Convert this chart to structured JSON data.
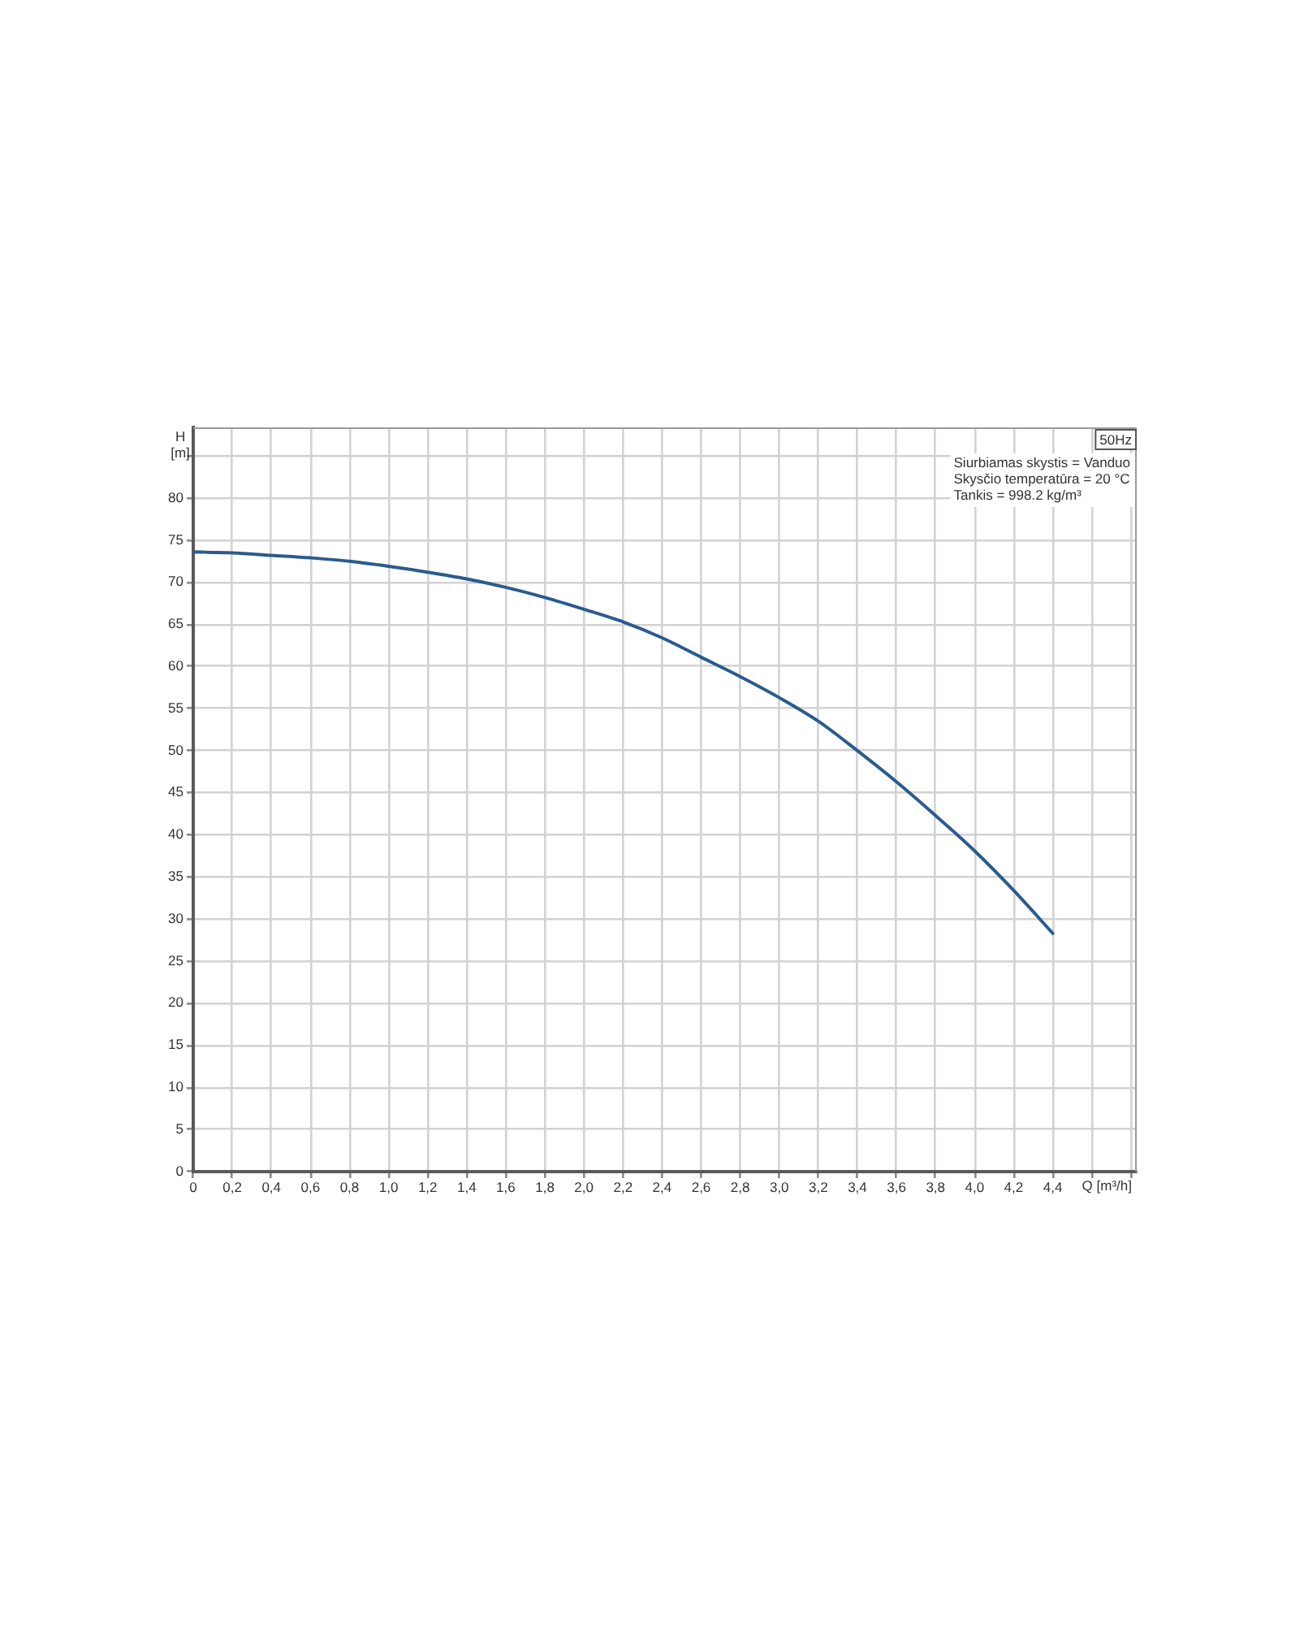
{
  "chart_data": {
    "type": "line",
    "title": "50Hz",
    "xlabel": "Q [m³/h]",
    "ylabel": "H [m]",
    "annotations": [
      "Siurbiamas skystis = Vanduo",
      "Skysčio temperatūra = 20 °C",
      "Tankis = 998.2 kg/m³"
    ],
    "x": [
      0,
      0.2,
      0.4,
      0.6,
      0.8,
      1.0,
      1.2,
      1.4,
      1.6,
      1.8,
      2.0,
      2.2,
      2.4,
      2.6,
      2.8,
      3.0,
      3.2,
      3.4,
      3.6,
      3.8,
      4.0,
      4.2,
      4.4
    ],
    "values": [
      73.6,
      73.5,
      73.2,
      72.9,
      72.5,
      71.9,
      71.2,
      70.4,
      69.4,
      68.2,
      66.8,
      65.3,
      63.4,
      61.1,
      58.8,
      56.3,
      53.5,
      50.0,
      46.3,
      42.3,
      38.1,
      33.4,
      28.3
    ],
    "color": "#2a5b8e",
    "xlim": [
      0,
      4.83
    ],
    "ylim": [
      0,
      88.4
    ],
    "xticks": [
      0,
      {
        "value": 0.2,
        "label": "0,2"
      },
      {
        "value": 0.4,
        "label": "0,4"
      },
      {
        "value": 0.6,
        "label": "0,6"
      },
      {
        "value": 0.8,
        "label": "0,8"
      },
      {
        "value": 1.0,
        "label": "1,0"
      },
      {
        "value": 1.2,
        "label": "1,2"
      },
      {
        "value": 1.4,
        "label": "1,4"
      },
      {
        "value": 1.6,
        "label": "1,6"
      },
      {
        "value": 1.8,
        "label": "1,8"
      },
      {
        "value": 2.0,
        "label": "2,0"
      },
      {
        "value": 2.2,
        "label": "2,2"
      },
      {
        "value": 2.4,
        "label": "2,4"
      },
      {
        "value": 2.6,
        "label": "2,6"
      },
      {
        "value": 2.8,
        "label": "2,8"
      },
      {
        "value": 3.0,
        "label": "3,0"
      },
      {
        "value": 3.2,
        "label": "3,2"
      },
      {
        "value": 3.4,
        "label": "3,4"
      },
      {
        "value": 3.6,
        "label": "3,6"
      },
      {
        "value": 3.8,
        "label": "3,8"
      },
      {
        "value": 4.0,
        "label": "4,0"
      },
      {
        "value": 4.2,
        "label": "4,2"
      },
      {
        "value": 4.4,
        "label": "4,4"
      },
      {
        "value": 4.6,
        "label": null
      },
      {
        "value": 4.8,
        "label": null
      }
    ],
    "yticks": [
      0,
      5,
      10,
      15,
      20,
      25,
      30,
      35,
      40,
      45,
      50,
      55,
      60,
      65,
      70,
      75,
      80,
      {
        "value": 85,
        "label": null
      }
    ],
    "grid": true
  }
}
